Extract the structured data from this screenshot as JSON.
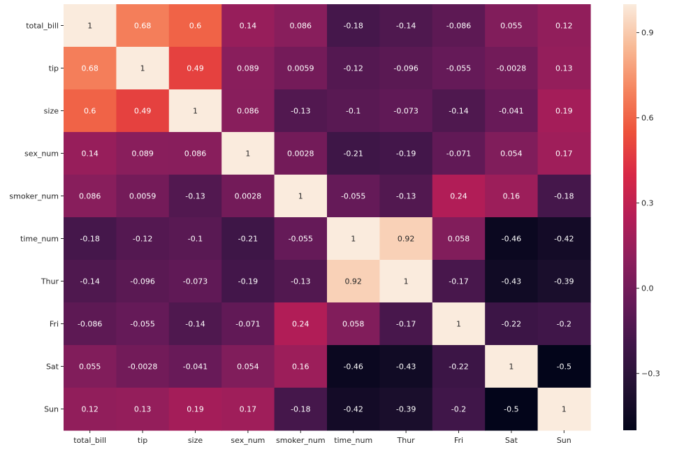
{
  "chart_data": {
    "type": "heatmap",
    "title": "",
    "xlabel": "",
    "ylabel": "",
    "rows": [
      "total_bill",
      "tip",
      "size",
      "sex_num",
      "smoker_num",
      "time_num",
      "Thur",
      "Fri",
      "Sat",
      "Sun"
    ],
    "columns": [
      "total_bill",
      "tip",
      "size",
      "sex_num",
      "smoker_num",
      "time_num",
      "Thur",
      "Fri",
      "Sat",
      "Sun"
    ],
    "values": [
      [
        1,
        0.68,
        0.6,
        0.14,
        0.086,
        -0.18,
        -0.14,
        -0.086,
        0.055,
        0.12
      ],
      [
        0.68,
        1,
        0.49,
        0.089,
        0.0059,
        -0.12,
        -0.096,
        -0.055,
        -0.0028,
        0.13
      ],
      [
        0.6,
        0.49,
        1,
        0.086,
        -0.13,
        -0.1,
        -0.073,
        -0.14,
        -0.041,
        0.19
      ],
      [
        0.14,
        0.089,
        0.086,
        1,
        0.0028,
        -0.21,
        -0.19,
        -0.071,
        0.054,
        0.17
      ],
      [
        0.086,
        0.0059,
        -0.13,
        0.0028,
        1,
        -0.055,
        -0.13,
        0.24,
        0.16,
        -0.18
      ],
      [
        -0.18,
        -0.12,
        -0.1,
        -0.21,
        -0.055,
        1,
        0.92,
        0.058,
        -0.46,
        -0.42
      ],
      [
        -0.14,
        -0.096,
        -0.073,
        -0.19,
        -0.13,
        0.92,
        1,
        -0.17,
        -0.43,
        -0.39
      ],
      [
        -0.086,
        -0.055,
        -0.14,
        -0.071,
        0.24,
        0.058,
        -0.17,
        1,
        -0.22,
        -0.2
      ],
      [
        0.055,
        -0.0028,
        -0.041,
        0.054,
        0.16,
        -0.46,
        -0.43,
        -0.22,
        1,
        -0.5
      ],
      [
        0.12,
        0.13,
        0.19,
        0.17,
        -0.18,
        -0.42,
        -0.39,
        -0.2,
        -0.5,
        1
      ]
    ],
    "labels": [
      [
        "1",
        "0.68",
        "0.6",
        "0.14",
        "0.086",
        "-0.18",
        "-0.14",
        "-0.086",
        "0.055",
        "0.12"
      ],
      [
        "0.68",
        "1",
        "0.49",
        "0.089",
        "0.0059",
        "-0.12",
        "-0.096",
        "-0.055",
        "-0.0028",
        "0.13"
      ],
      [
        "0.6",
        "0.49",
        "1",
        "0.086",
        "-0.13",
        "-0.1",
        "-0.073",
        "-0.14",
        "-0.041",
        "0.19"
      ],
      [
        "0.14",
        "0.089",
        "0.086",
        "1",
        "0.0028",
        "-0.21",
        "-0.19",
        "-0.071",
        "0.054",
        "0.17"
      ],
      [
        "0.086",
        "0.0059",
        "-0.13",
        "0.0028",
        "1",
        "-0.055",
        "-0.13",
        "0.24",
        "0.16",
        "-0.18"
      ],
      [
        "-0.18",
        "-0.12",
        "-0.1",
        "-0.21",
        "-0.055",
        "1",
        "0.92",
        "0.058",
        "-0.46",
        "-0.42"
      ],
      [
        "-0.14",
        "-0.096",
        "-0.073",
        "-0.19",
        "-0.13",
        "0.92",
        "1",
        "-0.17",
        "-0.43",
        "-0.39"
      ],
      [
        "-0.086",
        "-0.055",
        "-0.14",
        "-0.071",
        "0.24",
        "0.058",
        "-0.17",
        "1",
        "-0.22",
        "-0.2"
      ],
      [
        "0.055",
        "-0.0028",
        "-0.041",
        "0.054",
        "0.16",
        "-0.46",
        "-0.43",
        "-0.22",
        "1",
        "-0.5"
      ],
      [
        "0.12",
        "0.13",
        "0.19",
        "0.17",
        "-0.18",
        "-0.42",
        "-0.39",
        "-0.2",
        "-0.5",
        "1"
      ]
    ],
    "colorbar": {
      "colormap": "rocket",
      "vmin": -0.5,
      "vmax": 1,
      "ticks": [
        -0.3,
        0.0,
        0.3,
        0.6,
        0.9
      ],
      "tick_labels": [
        "−0.3",
        "0.0",
        "0.3",
        "0.6",
        "0.9"
      ]
    },
    "grid": false,
    "legend": "none"
  }
}
